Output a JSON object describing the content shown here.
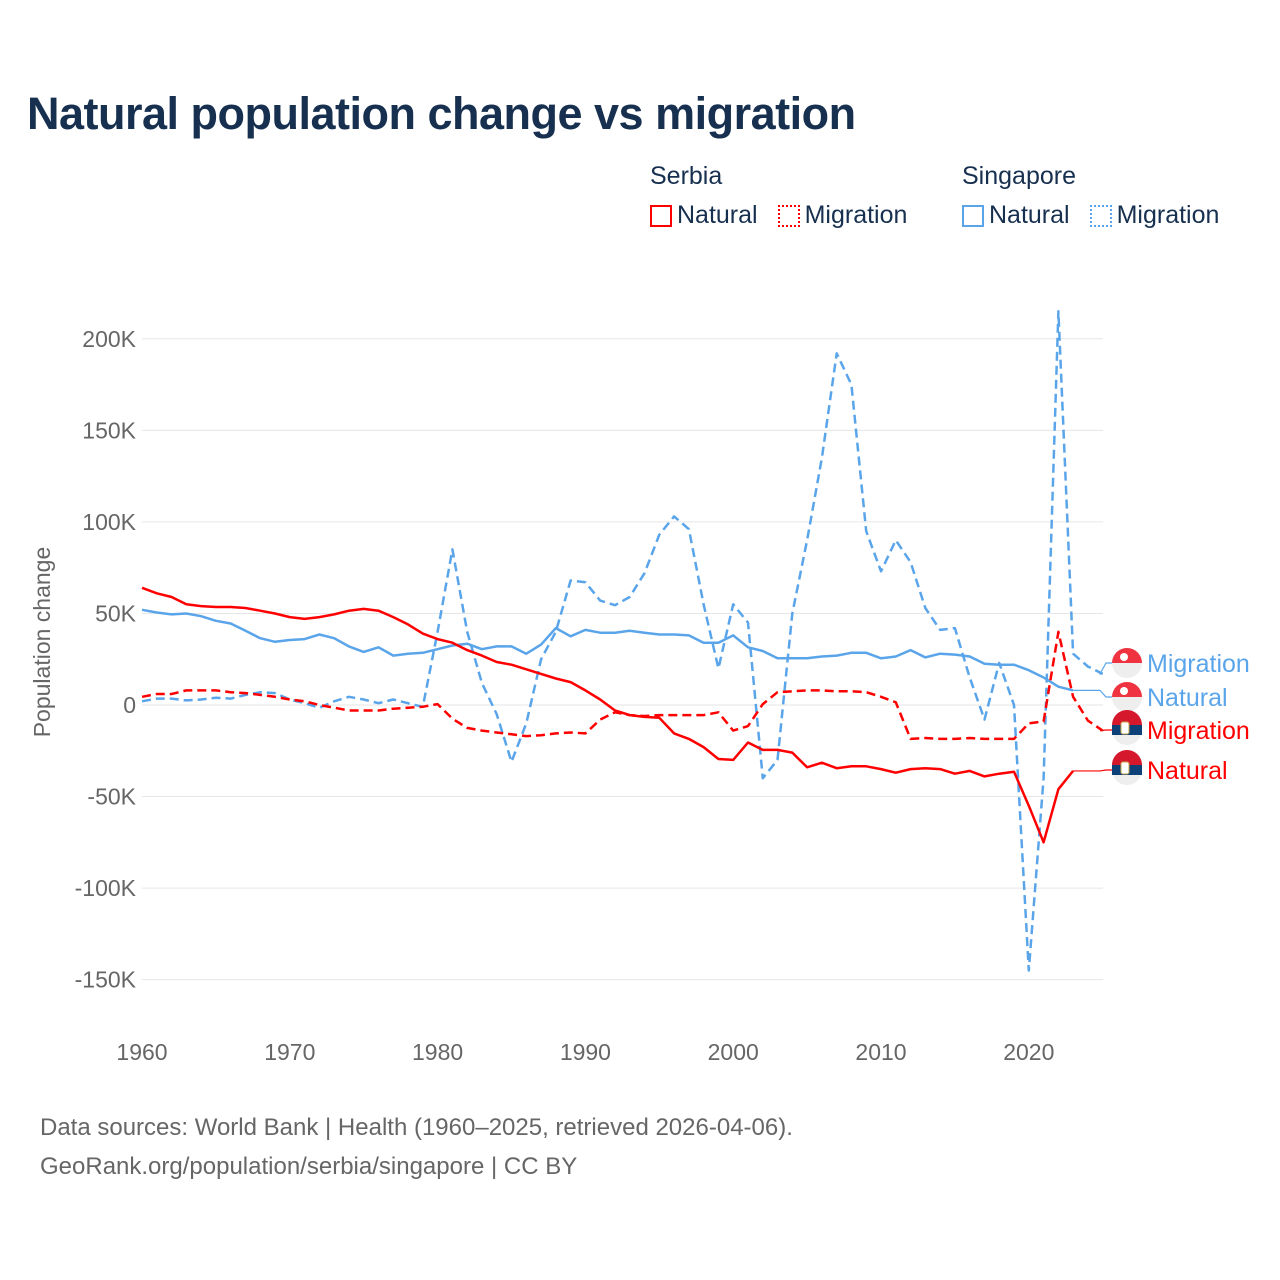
{
  "title": "Natural population change vs migration",
  "legend": {
    "groups": [
      {
        "title": "Serbia",
        "items": [
          "Natural",
          "Migration"
        ],
        "color": "#ff0000"
      },
      {
        "title": "Singapore",
        "items": [
          "Natural",
          "Migration"
        ],
        "color": "#5aa5ea"
      }
    ]
  },
  "footer": {
    "line1": "Data sources: World Bank | Health (1960–2025, retrieved 2026-04-06).",
    "line2": "GeoRank.org/population/serbia/singapore | CC BY"
  },
  "chart_data": {
    "type": "line",
    "title": "Natural population change vs migration",
    "xlabel": "",
    "ylabel": "Population change",
    "xlim": [
      1960,
      2025
    ],
    "ylim": [
      -165000,
      210000
    ],
    "x_ticks": [
      "1960",
      "1970",
      "1980",
      "1990",
      "2000",
      "2010",
      "2020"
    ],
    "y_ticks": [
      {
        "v": 200000,
        "label": "200K"
      },
      {
        "v": 150000,
        "label": "150K"
      },
      {
        "v": 100000,
        "label": "100K"
      },
      {
        "v": 50000,
        "label": "50K"
      },
      {
        "v": 0,
        "label": "0"
      },
      {
        "v": -50000,
        "label": "-50K"
      },
      {
        "v": -100000,
        "label": "-100K"
      },
      {
        "v": -150000,
        "label": "-150K"
      }
    ],
    "grid": true,
    "legend_position": "top-right",
    "start_year": 1960,
    "series": [
      {
        "name": "Singapore Migration",
        "label": "Migration",
        "country": "Singapore",
        "color": "#5aa5ea",
        "dashed": true,
        "values": [
          2,
          3.5,
          3.5,
          2.5,
          3,
          4,
          3.5,
          5.5,
          7,
          6.5,
          3,
          1,
          -1.5,
          2,
          4.5,
          3,
          1,
          3,
          1,
          -1,
          40,
          85,
          40,
          12,
          -5,
          -31,
          -10,
          25,
          40,
          68,
          67,
          57,
          54.5,
          59,
          72,
          93,
          103,
          96,
          55,
          20,
          55,
          45,
          -40,
          -30,
          50,
          90,
          135,
          192,
          175,
          95,
          73,
          90,
          78,
          53,
          41,
          42,
          15,
          -8,
          23,
          0,
          -145,
          -40,
          215,
          28,
          21,
          17
        ]
      },
      {
        "name": "Singapore Natural",
        "label": "Natural",
        "country": "Singapore",
        "color": "#5aa5ea",
        "dashed": false,
        "values": [
          52,
          50.5,
          49.5,
          50,
          48.5,
          46,
          44.5,
          40.5,
          36.5,
          34.5,
          35.5,
          36,
          38.5,
          36.5,
          32,
          29,
          31.5,
          27,
          28,
          28.5,
          30.5,
          32.5,
          33.5,
          30.5,
          32,
          32,
          28,
          33,
          42,
          37.5,
          41,
          39.5,
          39.5,
          40.5,
          39.5,
          38.5,
          38.5,
          38,
          34,
          34,
          38,
          31.5,
          29.5,
          25.5,
          25.5,
          25.5,
          26.5,
          27,
          28.5,
          28.5,
          25.5,
          26.5,
          30,
          26,
          28,
          27.5,
          26.5,
          22.5,
          22,
          22,
          19,
          15,
          10,
          8
        ]
      },
      {
        "name": "Serbia Migration",
        "label": "Migration",
        "country": "Serbia",
        "color": "#ff0000",
        "dashed": true,
        "values": [
          4.5,
          6,
          6,
          8,
          8,
          8,
          7,
          6.5,
          5.5,
          4.5,
          3,
          2,
          0,
          -1.5,
          -3,
          -3,
          -3,
          -2,
          -1.5,
          -1,
          0.5,
          -7.5,
          -12.5,
          -14,
          -15,
          -16,
          -17,
          -16.5,
          -15.5,
          -15,
          -15.5,
          -8,
          -4,
          -5.5,
          -6,
          -5.5,
          -5.5,
          -5.5,
          -5.5,
          -4,
          -14,
          -11.5,
          0.5,
          7,
          7.5,
          8,
          8,
          7.5,
          7.5,
          7,
          4.5,
          1.5,
          -18.5,
          -18,
          -18.5,
          -18.5,
          -18,
          -18.5,
          -18.5,
          -18.5,
          -10,
          -9,
          40,
          4.5,
          -8.5,
          -14
        ]
      },
      {
        "name": "Serbia Natural",
        "label": "Natural",
        "country": "Serbia",
        "color": "#ff0000",
        "dashed": false,
        "values": [
          64,
          61,
          59,
          55,
          54,
          53.5,
          53.5,
          53,
          51.5,
          50,
          48,
          47,
          48,
          49.5,
          51.5,
          52.5,
          51.5,
          48,
          44,
          39,
          36,
          34,
          30,
          27,
          23.5,
          22,
          19.5,
          17,
          14.5,
          12.5,
          8,
          3,
          -3,
          -5.5,
          -6.5,
          -7,
          -15.5,
          -18.5,
          -23,
          -29.5,
          -30,
          -20.5,
          -24.5,
          -24.5,
          -26,
          -34,
          -31.5,
          -34.5,
          -33.5,
          -33.5,
          -35,
          -37,
          -35,
          -34.5,
          -35,
          -37.5,
          -36,
          -39,
          -37.5,
          -36.5,
          -55,
          -75,
          -46,
          -36
        ]
      }
    ],
    "value_unit": "thousands"
  }
}
